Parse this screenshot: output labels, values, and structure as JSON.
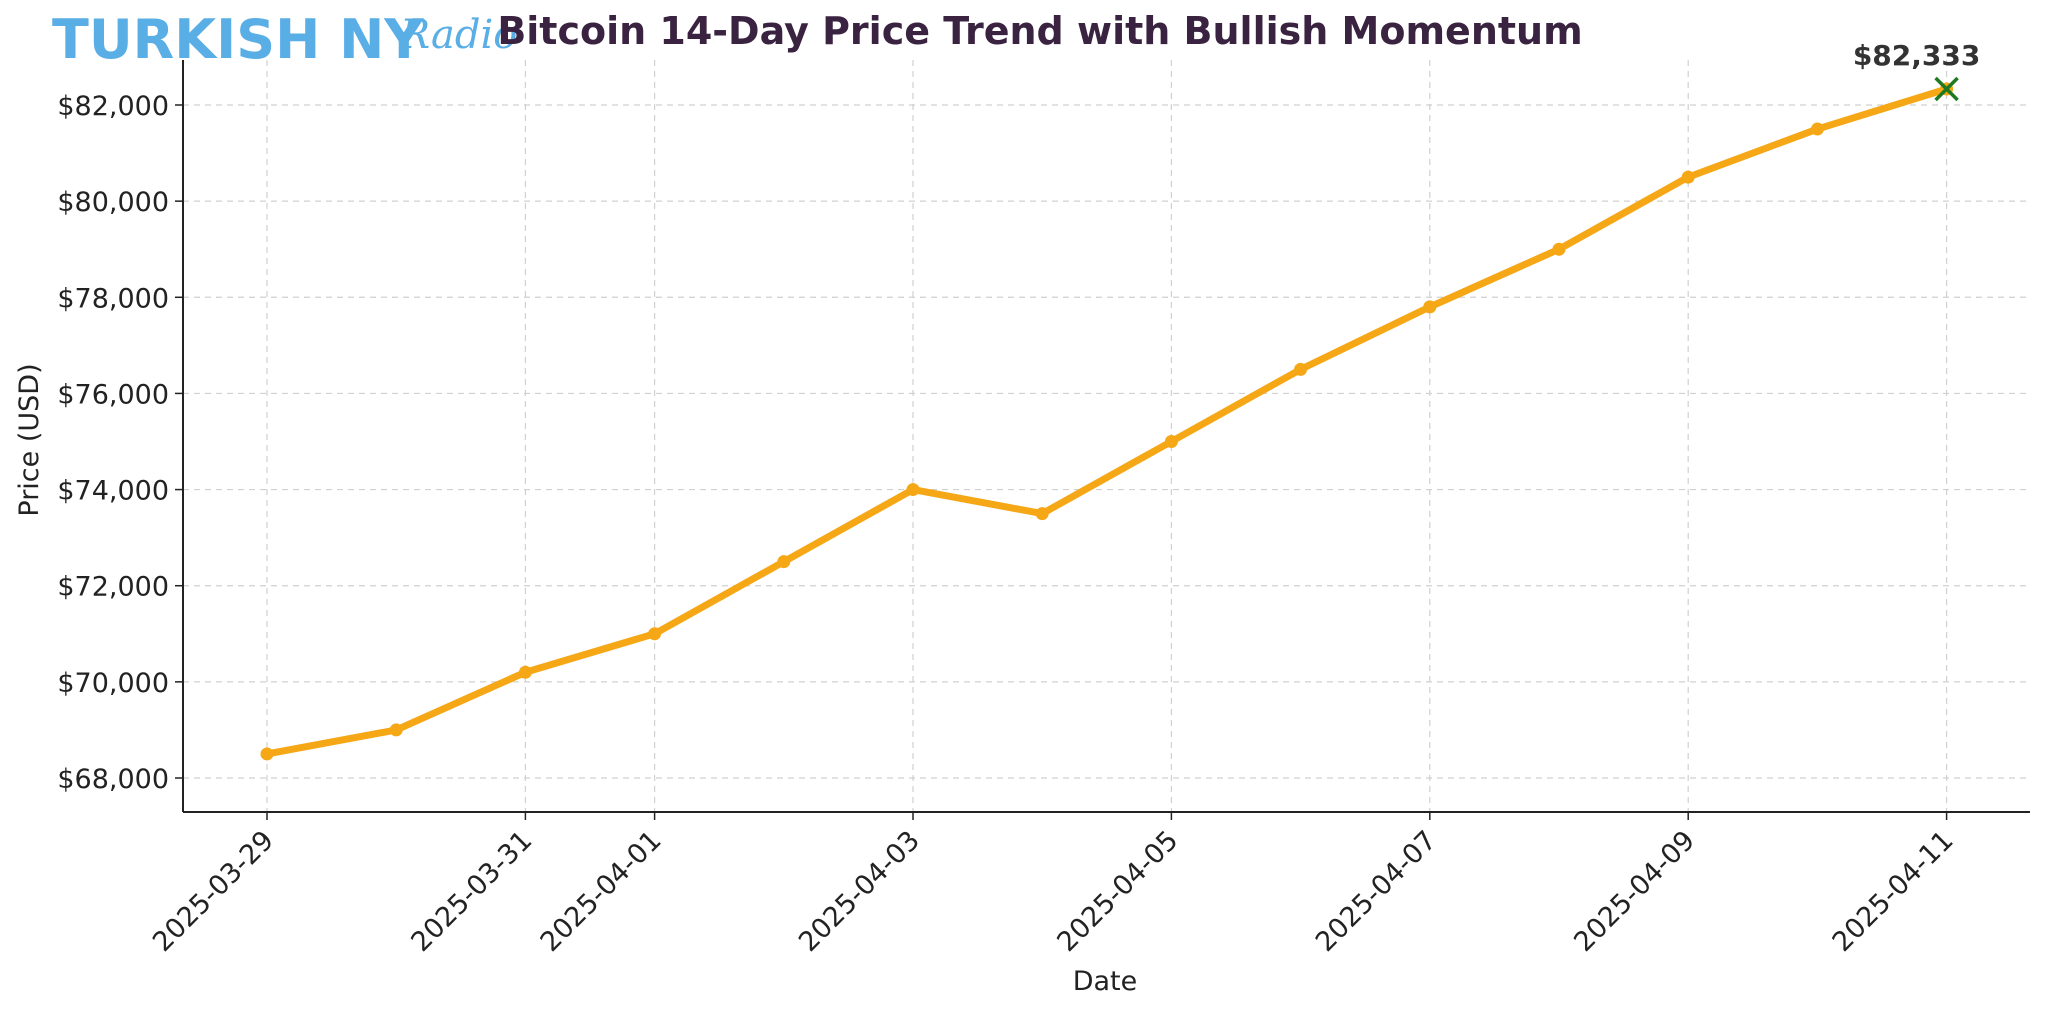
{
  "logo": {
    "main": "TURKISH NY",
    "script": "Radio"
  },
  "chart_data": {
    "type": "line",
    "title": "Bitcoin 14-Day Price Trend with Bullish Momentum",
    "xlabel": "Date",
    "ylabel": "Price (USD)",
    "x": [
      "2025-03-29",
      "2025-03-30",
      "2025-03-31",
      "2025-04-01",
      "2025-04-02",
      "2025-04-03",
      "2025-04-04",
      "2025-04-05",
      "2025-04-06",
      "2025-04-07",
      "2025-04-08",
      "2025-04-09",
      "2025-04-10",
      "2025-04-11"
    ],
    "series": [
      {
        "values": [
          68500,
          69000,
          70200,
          71000,
          72500,
          74000,
          73500,
          75000,
          76500,
          77800,
          79000,
          80500,
          81500,
          82333
        ]
      }
    ],
    "xticks": [
      "2025-03-29",
      "2025-03-31",
      "2025-04-01",
      "2025-04-03",
      "2025-04-05",
      "2025-04-07",
      "2025-04-09",
      "2025-04-11"
    ],
    "yticks": [
      68000,
      70000,
      72000,
      74000,
      76000,
      78000,
      80000,
      82000
    ],
    "ytick_labels": [
      "$68,000",
      "$70,000",
      "$72,000",
      "$74,000",
      "$76,000",
      "$78,000",
      "$80,000",
      "$82,000"
    ],
    "ylim": [
      67800,
      83000
    ],
    "grid": true,
    "annotation": {
      "x": "2025-04-11",
      "y": 82333,
      "label": "$82,333",
      "marker": "x"
    },
    "colors": {
      "line": "#f5a716",
      "marker_highlight": "#1f7a1f",
      "grid": "#d0d0d0",
      "title": "#3a2340"
    }
  }
}
